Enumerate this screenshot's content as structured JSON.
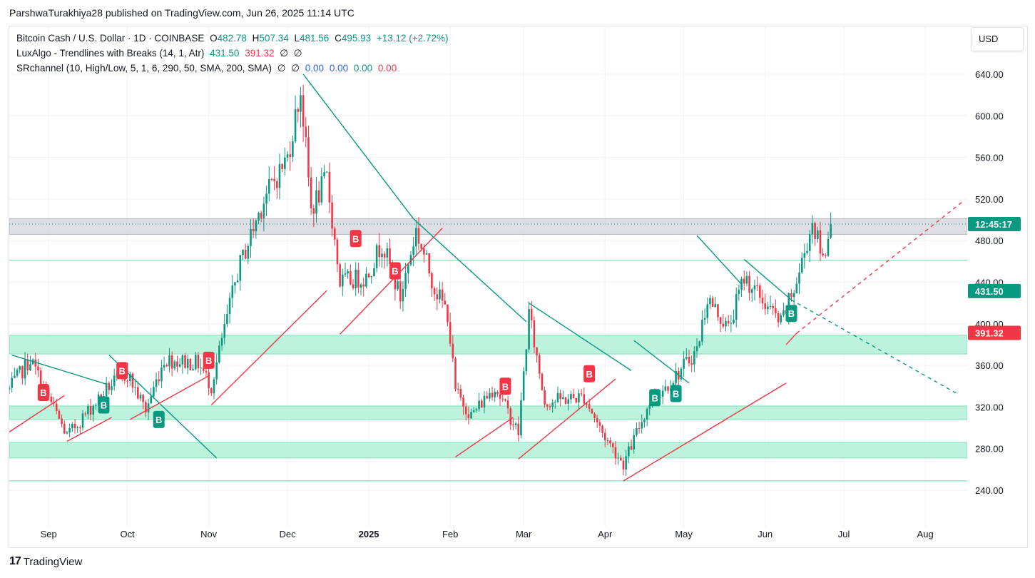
{
  "header": {
    "publisher_line": "ParshwaTurakhiya28 published on TradingView.com, Jun 26, 2025 11:14 UTC"
  },
  "legend": {
    "symbol": {
      "name": "Bitcoin Cash / U.S. Dollar · 1D · COINBASE",
      "o_label": "O",
      "o": "482.78",
      "h_label": "H",
      "h": "507.34",
      "l_label": "L",
      "l": "481.56",
      "c_label": "C",
      "c": "495.93",
      "change": "+13.12 (+2.72%)"
    },
    "luxalgo": {
      "name": "LuxAlgo - Trendlines with Breaks (14, 1, Atr)",
      "v1": "431.50",
      "v2": "391.32",
      "v3": "∅",
      "v4": "∅"
    },
    "srchannel": {
      "name": "SRchannel (10, High/Low, 5, 1, 6, 290, 50, SMA, 200, SMA)",
      "v1": "∅",
      "v2": "∅",
      "v3": "0.00",
      "v4": "0.00",
      "v5": "0.00",
      "v6": "0.00"
    }
  },
  "currency_button": "USD",
  "branding": {
    "logo_mark": "17",
    "logo_text": "TradingView"
  },
  "colors": {
    "up": "#089981",
    "down": "#f23645",
    "zone": "#b2f0d6",
    "resistance": "#d1d4dc",
    "trend_up": "#f23645",
    "trend_down": "#089981"
  },
  "chart_data": {
    "type": "candlestick",
    "title": "Bitcoin Cash / U.S. Dollar · 1D · COINBASE",
    "y_axis": {
      "ticks": [
        240,
        280,
        320,
        360,
        400,
        440,
        480,
        520,
        560,
        600,
        640
      ],
      "tick_labels": [
        "240.00",
        "280.00",
        "320.00",
        "360.00",
        "400.00",
        "440.00",
        "480.00",
        "520.00",
        "560.00",
        "600.00",
        "640.00"
      ],
      "range": [
        214,
        676
      ]
    },
    "x_axis": {
      "tick_labels": [
        "Sep",
        "Oct",
        "Nov",
        "Dec",
        "2025",
        "Feb",
        "Mar",
        "Apr",
        "May",
        "Jun",
        "Jul",
        "Aug"
      ],
      "ticks": [
        "2024-09-01",
        "2024-10-01",
        "2024-11-01",
        "2024-12-01",
        "2025-01-01",
        "2025-02-01",
        "2025-03-01",
        "2025-04-01",
        "2025-05-01",
        "2025-06-01",
        "2025-07-01",
        "2025-08-01"
      ],
      "range": [
        "2024-08-17",
        "2025-08-17"
      ]
    },
    "price_labels": [
      {
        "text": "12:45:17",
        "value": 495.93,
        "color": "#089981"
      },
      {
        "text": "431.50",
        "value": 431.5,
        "color": "#089981"
      },
      {
        "text": "391.32",
        "value": 391.32,
        "color": "#f23645"
      }
    ],
    "zones": [
      {
        "from": 486,
        "to": 501,
        "color": "#d1d4dc"
      },
      {
        "from": 371,
        "to": 389,
        "color": "#b2f0d6"
      },
      {
        "from": 308,
        "to": 321,
        "color": "#b2f0d6"
      },
      {
        "from": 271,
        "to": 286,
        "color": "#b2f0d6"
      }
    ],
    "hlines": [
      461,
      249
    ],
    "anchors": [
      {
        "date": "2024-08-17",
        "close": 337
      },
      {
        "date": "2024-08-25",
        "close": 366
      },
      {
        "date": "2024-09-08",
        "close": 292
      },
      {
        "date": "2024-09-24",
        "close": 340
      },
      {
        "date": "2024-10-01",
        "close": 352
      },
      {
        "date": "2024-10-08",
        "close": 317
      },
      {
        "date": "2024-10-15",
        "close": 366
      },
      {
        "date": "2024-10-28",
        "close": 362
      },
      {
        "date": "2024-11-02",
        "close": 340
      },
      {
        "date": "2024-11-12",
        "close": 450
      },
      {
        "date": "2024-11-22",
        "close": 520
      },
      {
        "date": "2024-12-01",
        "close": 560
      },
      {
        "date": "2024-12-06",
        "close": 625
      },
      {
        "date": "2024-12-10",
        "close": 510
      },
      {
        "date": "2024-12-16",
        "close": 540
      },
      {
        "date": "2024-12-21",
        "close": 440
      },
      {
        "date": "2024-12-31",
        "close": 445
      },
      {
        "date": "2025-01-06",
        "close": 478
      },
      {
        "date": "2025-01-13",
        "close": 425
      },
      {
        "date": "2025-01-19",
        "close": 490
      },
      {
        "date": "2025-01-26",
        "close": 435
      },
      {
        "date": "2025-01-31",
        "close": 410
      },
      {
        "date": "2025-02-03",
        "close": 335
      },
      {
        "date": "2025-02-09",
        "close": 312
      },
      {
        "date": "2025-02-18",
        "close": 340
      },
      {
        "date": "2025-02-27",
        "close": 295
      },
      {
        "date": "2025-03-03",
        "close": 410
      },
      {
        "date": "2025-03-09",
        "close": 325
      },
      {
        "date": "2025-03-24",
        "close": 330
      },
      {
        "date": "2025-03-31",
        "close": 295
      },
      {
        "date": "2025-04-08",
        "close": 265
      },
      {
        "date": "2025-04-18",
        "close": 325
      },
      {
        "date": "2025-04-28",
        "close": 350
      },
      {
        "date": "2025-05-06",
        "close": 375
      },
      {
        "date": "2025-05-10",
        "close": 425
      },
      {
        "date": "2025-05-18",
        "close": 395
      },
      {
        "date": "2025-05-24",
        "close": 445
      },
      {
        "date": "2025-06-07",
        "close": 400
      },
      {
        "date": "2025-06-13",
        "close": 440
      },
      {
        "date": "2025-06-19",
        "close": 498
      },
      {
        "date": "2025-06-23",
        "close": 462
      },
      {
        "date": "2025-06-26",
        "close": 495.93
      }
    ],
    "trendlines": [
      {
        "type": "resistance",
        "style": "solid",
        "points": [
          [
            "2024-08-18",
            370
          ],
          [
            "2024-09-23",
            342
          ]
        ]
      },
      {
        "type": "resistance",
        "style": "solid",
        "points": [
          [
            "2024-09-24",
            370
          ],
          [
            "2024-11-04",
            271
          ]
        ]
      },
      {
        "type": "resistance",
        "style": "solid",
        "points": [
          [
            "2024-12-07",
            640
          ],
          [
            "2025-01-18",
            501
          ]
        ]
      },
      {
        "type": "resistance",
        "style": "solid",
        "points": [
          [
            "2025-01-18",
            501
          ],
          [
            "2025-03-02",
            402
          ]
        ]
      },
      {
        "type": "resistance",
        "style": "solid",
        "points": [
          [
            "2025-03-03",
            420
          ],
          [
            "2025-04-11",
            355
          ]
        ]
      },
      {
        "type": "resistance",
        "style": "solid",
        "points": [
          [
            "2025-04-12",
            384
          ],
          [
            "2025-05-03",
            343
          ]
        ]
      },
      {
        "type": "resistance",
        "style": "solid",
        "points": [
          [
            "2025-05-06",
            485
          ],
          [
            "2025-05-23",
            438
          ]
        ]
      },
      {
        "type": "resistance",
        "style": "solid",
        "points": [
          [
            "2025-05-24",
            462
          ],
          [
            "2025-06-11",
            423
          ]
        ]
      },
      {
        "type": "resistance",
        "style": "dashed",
        "points": [
          [
            "2025-06-11",
            423
          ],
          [
            "2025-08-13",
            333
          ]
        ]
      },
      {
        "type": "support",
        "style": "solid",
        "points": [
          [
            "2024-08-17",
            296
          ],
          [
            "2024-09-07",
            331
          ]
        ]
      },
      {
        "type": "support",
        "style": "solid",
        "points": [
          [
            "2024-09-08",
            287
          ],
          [
            "2024-09-25",
            310
          ]
        ]
      },
      {
        "type": "support",
        "style": "solid",
        "points": [
          [
            "2024-10-02",
            308
          ],
          [
            "2024-11-01",
            350
          ]
        ]
      },
      {
        "type": "support",
        "style": "solid",
        "points": [
          [
            "2024-11-02",
            322
          ],
          [
            "2024-12-16",
            432
          ]
        ]
      },
      {
        "type": "support",
        "style": "solid",
        "points": [
          [
            "2024-12-21",
            390
          ],
          [
            "2025-01-29",
            492
          ]
        ]
      },
      {
        "type": "support",
        "style": "solid",
        "points": [
          [
            "2025-02-03",
            272
          ],
          [
            "2025-02-25",
            310
          ]
        ]
      },
      {
        "type": "support",
        "style": "solid",
        "points": [
          [
            "2025-02-27",
            270
          ],
          [
            "2025-04-05",
            347
          ]
        ]
      },
      {
        "type": "support",
        "style": "solid",
        "points": [
          [
            "2025-04-08",
            249
          ],
          [
            "2025-06-09",
            343
          ]
        ]
      },
      {
        "type": "support",
        "style": "solid",
        "points": [
          [
            "2025-06-09",
            380
          ],
          [
            "2025-06-13",
            391
          ]
        ]
      },
      {
        "type": "support",
        "style": "dashed",
        "points": [
          [
            "2025-06-13",
            391
          ],
          [
            "2025-08-15",
            517
          ]
        ]
      }
    ],
    "break_markers": [
      {
        "label": "B",
        "date": "2024-08-30",
        "value": 334,
        "kind": "bearish"
      },
      {
        "date": "2024-09-22",
        "value": 322,
        "label": "B",
        "kind": "bullish"
      },
      {
        "date": "2024-09-29",
        "value": 355,
        "label": "B",
        "kind": "bearish"
      },
      {
        "date": "2024-10-13",
        "value": 308,
        "label": "B",
        "kind": "bullish"
      },
      {
        "date": "2024-11-01",
        "value": 365,
        "label": "B",
        "kind": "bearish"
      },
      {
        "date": "2024-12-27",
        "value": 482,
        "label": "B",
        "kind": "bearish"
      },
      {
        "date": "2025-01-11",
        "value": 451,
        "label": "B",
        "kind": "bearish"
      },
      {
        "date": "2025-02-22",
        "value": 340,
        "label": "B",
        "kind": "bearish"
      },
      {
        "date": "2025-03-26",
        "value": 352,
        "label": "B",
        "kind": "bearish"
      },
      {
        "date": "2025-04-20",
        "value": 329,
        "label": "B",
        "kind": "bullish"
      },
      {
        "date": "2025-04-28",
        "value": 333,
        "label": "B",
        "kind": "bullish"
      },
      {
        "date": "2025-06-11",
        "value": 410,
        "label": "B",
        "kind": "bullish"
      }
    ],
    "grid": true
  }
}
